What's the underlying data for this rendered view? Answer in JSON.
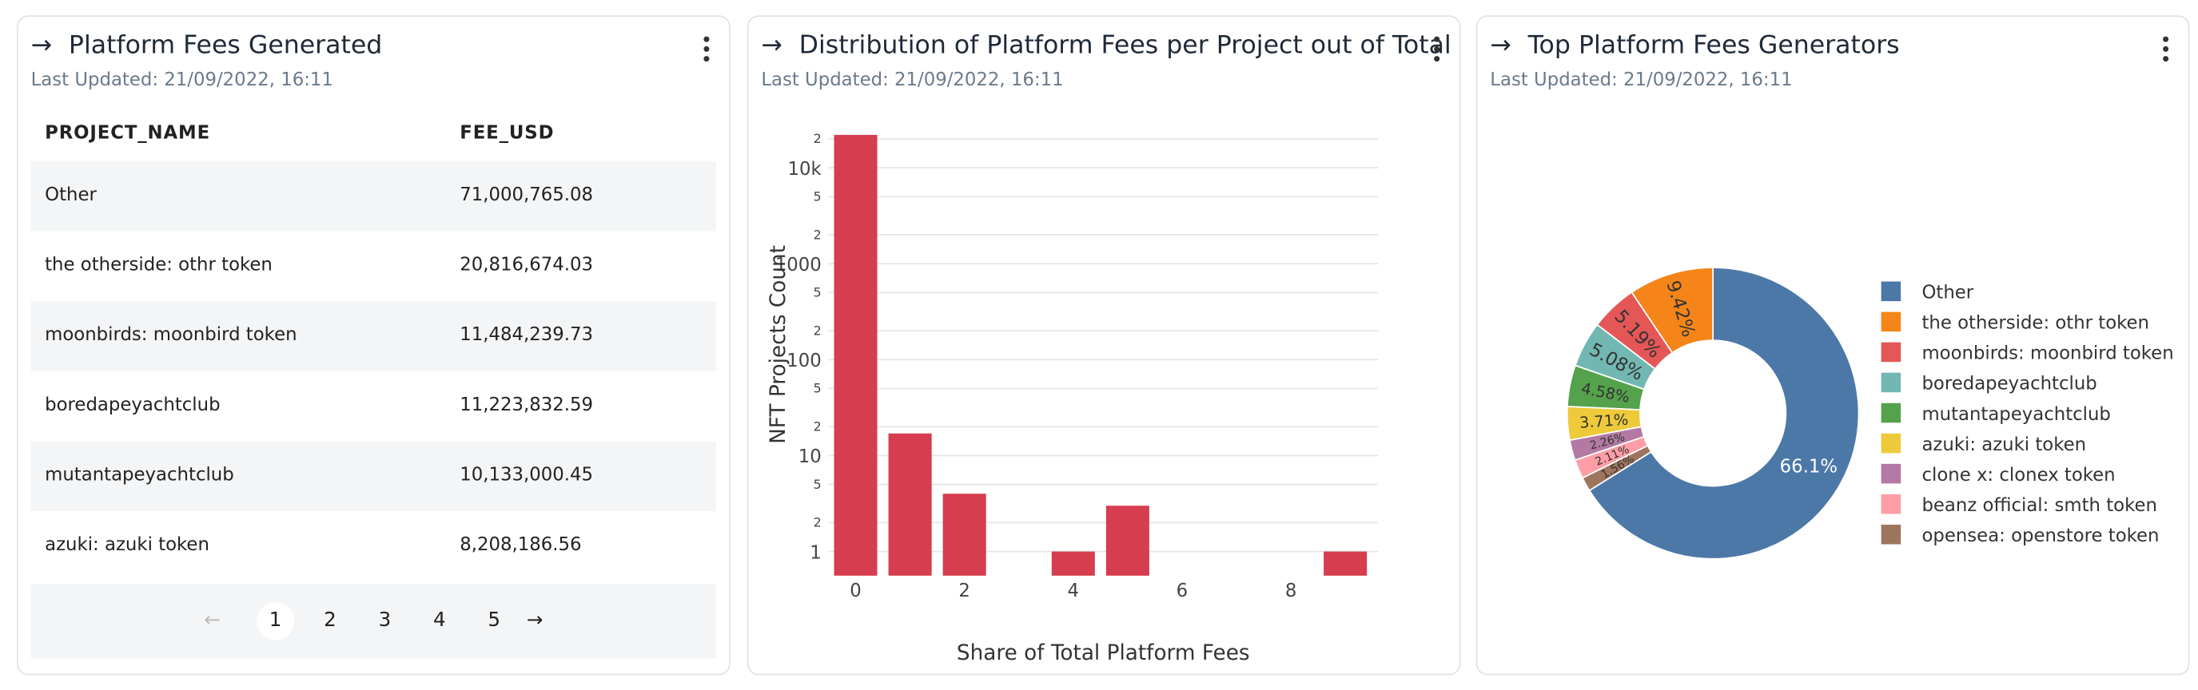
{
  "table_card": {
    "title": "Platform Fees Generated",
    "subtitle": "Last Updated: 21/09/2022, 16:11",
    "columns": [
      "PROJECT_NAME",
      "FEE_USD"
    ],
    "rows": [
      [
        "Other",
        "71,000,765.08"
      ],
      [
        "the otherside: othr token",
        "20,816,674.03"
      ],
      [
        "moonbirds: moonbird token",
        "11,484,239.73"
      ],
      [
        "boredapeyachtclub",
        "11,223,832.59"
      ],
      [
        "mutantapeyachtclub",
        "10,133,000.45"
      ],
      [
        "azuki: azuki token",
        "8,208,186.56"
      ]
    ],
    "pages": [
      1,
      2,
      3,
      4,
      5
    ]
  },
  "chart_data": [
    {
      "type": "histogram",
      "title": "Distribution of Platform Fees per Project out of Total",
      "subtitle": "Last Updated: 21/09/2022, 16:11",
      "x_label": "Share of Total Platform Fees",
      "y_label": "NFT Projects Count",
      "bins": [
        -0.5,
        0.5,
        1.5,
        2.5,
        3.5,
        4.5,
        5.5,
        6.5,
        7.5,
        8.5,
        9.5
      ],
      "values": [
        22000,
        17,
        4,
        0,
        1,
        3,
        0,
        0,
        0,
        1
      ],
      "color": "#d63d4e",
      "xlim": [
        -0.5,
        9.6
      ],
      "xticks": [
        0,
        2,
        4,
        6,
        8
      ],
      "ylim": [
        0.56,
        23000
      ],
      "log_y": true,
      "grid": true,
      "yticks": [
        1,
        2,
        5,
        10,
        {
          "value": 20,
          "label": "2"
        },
        {
          "value": 50,
          "label": "5"
        },
        100,
        {
          "value": 200,
          "label": "2"
        },
        {
          "value": 500,
          "label": "5"
        },
        1000,
        {
          "value": 2000,
          "label": "2"
        },
        {
          "value": 5000,
          "label": "5"
        },
        {
          "value": 10000,
          "label": "10k"
        },
        {
          "value": 20000,
          "label": "2"
        }
      ]
    },
    {
      "type": "donut",
      "title": "Top Platform Fees Generators",
      "subtitle": "Last Updated: 21/09/2022, 16:11",
      "categories": [
        "Other",
        "the otherside: othr token",
        "moonbirds: moonbird token",
        "boredapeyachtclub",
        "mutantapeyachtclub",
        "azuki: azuki token",
        "clone x: clonex token",
        "beanz official: smth token",
        "opensea: openstore token"
      ],
      "values": [
        66.1,
        9.42,
        5.19,
        5.08,
        4.58,
        3.71,
        2.26,
        2.11,
        1.56
      ],
      "value_labels": [
        "66.1%",
        "9.42%",
        "5.19%",
        "5.08%",
        "4.58%",
        "3.71%",
        "2.26%",
        "2.11%",
        "1.56%"
      ],
      "colors": [
        "#4c78a8",
        "#f58518",
        "#e45756",
        "#72b7b2",
        "#54a24b",
        "#eeca3b",
        "#b279a2",
        "#ff9da6",
        "#9d755d"
      ],
      "legend": "right"
    }
  ]
}
